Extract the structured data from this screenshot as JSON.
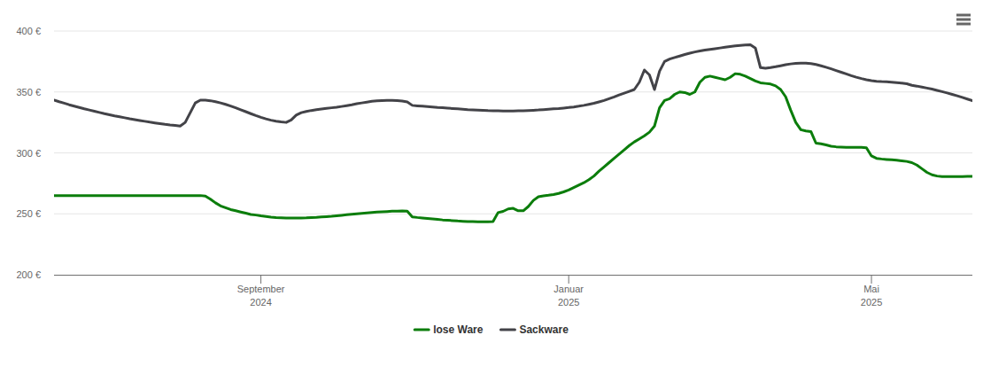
{
  "chart_data": {
    "type": "line",
    "categories": [
      null,
      null,
      null,
      null,
      null,
      null,
      null,
      null,
      null,
      null,
      null,
      null,
      null,
      null,
      null,
      null,
      null,
      null,
      null,
      null,
      null,
      null,
      null,
      null,
      null,
      null,
      null,
      null,
      null,
      null,
      null,
      null,
      null,
      null,
      null,
      null,
      null,
      null,
      null,
      null,
      null,
      "September 2024",
      null,
      null,
      null,
      null,
      null,
      null,
      null,
      null,
      null,
      null,
      null,
      null,
      null,
      null,
      null,
      null,
      null,
      null,
      null,
      null,
      null,
      null,
      null,
      null,
      null,
      null,
      null,
      null,
      null,
      null,
      null,
      null,
      null,
      null,
      null,
      null,
      null,
      null,
      null,
      null,
      null,
      null,
      null,
      null,
      null,
      null,
      null,
      null,
      null,
      null,
      null,
      null,
      null,
      null,
      null,
      null,
      null,
      null,
      null,
      null,
      "Januar 2025",
      null,
      null,
      null,
      null,
      null,
      null,
      null,
      null,
      null,
      null,
      null,
      null,
      null,
      null,
      null,
      null,
      null,
      null,
      null,
      null,
      null,
      null,
      null,
      null,
      null,
      null,
      null,
      null,
      null,
      null,
      null,
      null,
      null,
      null,
      null,
      null,
      null,
      null,
      null,
      null,
      null,
      null,
      null,
      null,
      null,
      null,
      null,
      null,
      null,
      null,
      null,
      null,
      null,
      null,
      null,
      null,
      null,
      null,
      null,
      "Mai 2025",
      null,
      null,
      null,
      null,
      null,
      null,
      null,
      null,
      null,
      null,
      null,
      null,
      null,
      null,
      null,
      null,
      null,
      null,
      null,
      null
    ],
    "series": [
      {
        "name": "lose Ware",
        "color": "#0b7d0b",
        "values": [
          265,
          265,
          265,
          265,
          265,
          265,
          265,
          265,
          265,
          265,
          265,
          265,
          265,
          265,
          265,
          265,
          265,
          265,
          265,
          265,
          265,
          265,
          265,
          265,
          265,
          265,
          265,
          265,
          265,
          265,
          264.5,
          262,
          259,
          256.5,
          255,
          253.5,
          252.5,
          251.5,
          250.5,
          249.5,
          249,
          248.3,
          247.8,
          247.3,
          247,
          246.8,
          246.6,
          246.5,
          246.5,
          246.6,
          246.7,
          246.9,
          247.1,
          247.4,
          247.7,
          248,
          248.4,
          248.8,
          249.2,
          249.6,
          250,
          250.4,
          250.8,
          251.1,
          251.4,
          251.7,
          251.9,
          252.1,
          252.2,
          252.3,
          252.2,
          247.5,
          247,
          246.6,
          246.2,
          245.8,
          245.4,
          245,
          244.7,
          244.4,
          244.1,
          243.9,
          243.7,
          243.6,
          243.5,
          243.5,
          243.5,
          243.6,
          251,
          252,
          254,
          254.5,
          252.5,
          252.5,
          256,
          261,
          264,
          264.7,
          265.2,
          265.8,
          266.7,
          268,
          269.5,
          271.5,
          273.5,
          275.5,
          278,
          281,
          285,
          288.5,
          292,
          295.5,
          299,
          302.5,
          306,
          309,
          311.5,
          314,
          317,
          322,
          337,
          343,
          344.5,
          348,
          350,
          349.5,
          348,
          350,
          358,
          362,
          363,
          362,
          361,
          360,
          362,
          365,
          364.5,
          363,
          361,
          359,
          357.5,
          357,
          356.5,
          355,
          352,
          346,
          335,
          325,
          319,
          318,
          317.5,
          308,
          307.5,
          306.5,
          305.5,
          305,
          304.8,
          304.6,
          304.5,
          304.5,
          304.5,
          304.2,
          297.5,
          295.5,
          295,
          294.6,
          294.3,
          294,
          293.5,
          293,
          292,
          290,
          287,
          284,
          282,
          281,
          280.6,
          280.5,
          280.5,
          280.5,
          280.6,
          280.7,
          280.8
        ]
      },
      {
        "name": "Sackware",
        "color": "#434348",
        "values": [
          343.3,
          342,
          340.8,
          339.5,
          338.4,
          337.3,
          336.2,
          335.2,
          334.2,
          333.2,
          332.2,
          331.3,
          330.4,
          329.6,
          328.8,
          328,
          327.3,
          326.6,
          325.9,
          325.2,
          324.6,
          324,
          323.4,
          322.9,
          322.5,
          322,
          325,
          333,
          341,
          343.3,
          343.2,
          342.8,
          342,
          341,
          339.8,
          338.5,
          337,
          335.4,
          333.8,
          332.2,
          330.6,
          329.2,
          327.9,
          326.8,
          326,
          325.4,
          325,
          327,
          331,
          333,
          334,
          334.8,
          335.5,
          336,
          336.5,
          337,
          337.5,
          338.1,
          338.8,
          339.5,
          340.3,
          341,
          341.7,
          342.3,
          342.7,
          343,
          343.1,
          343.1,
          342.9,
          342.5,
          341.8,
          339,
          338.6,
          338.3,
          338,
          337.7,
          337.3,
          337,
          336.7,
          336.4,
          336.1,
          335.8,
          335.5,
          335.3,
          335.1,
          334.9,
          334.7,
          334.6,
          334.5,
          334.4,
          334.4,
          334.4,
          334.5,
          334.6,
          334.8,
          335,
          335.2,
          335.5,
          335.8,
          336.1,
          336.4,
          336.8,
          337.2,
          337.7,
          338.3,
          339,
          339.8,
          340.7,
          341.8,
          343,
          344.4,
          345.9,
          347.5,
          349,
          350.5,
          352,
          358,
          368,
          364,
          352,
          367,
          375,
          377,
          378.3,
          379.5,
          380.7,
          381.8,
          382.8,
          383.6,
          384.3,
          384.9,
          385.5,
          386.1,
          386.7,
          387.3,
          387.8,
          388.2,
          388.5,
          388.7,
          386,
          370,
          369.5,
          370,
          370.7,
          371.5,
          372.3,
          373,
          373.5,
          373.7,
          373.6,
          373.2,
          372.5,
          371.5,
          370.3,
          369,
          367.6,
          366.2,
          364.8,
          363.4,
          362.1,
          361,
          360,
          359.3,
          358.8,
          358.5,
          358.3,
          358,
          357.6,
          357.2,
          356.7,
          355.5,
          354.8,
          354,
          353.2,
          352.3,
          351.3,
          350.3,
          349.2,
          348,
          346.8,
          345.5,
          344.2,
          342.8
        ]
      }
    ],
    "ylim": [
      200,
      400
    ],
    "yticks": [
      {
        "value": 200,
        "label": "200 €"
      },
      {
        "value": 250,
        "label": "250 €"
      },
      {
        "value": 300,
        "label": "300 €"
      },
      {
        "value": 350,
        "label": "350 €"
      },
      {
        "value": 400,
        "label": "400 €"
      }
    ],
    "grid": true,
    "legend": "bottom"
  }
}
